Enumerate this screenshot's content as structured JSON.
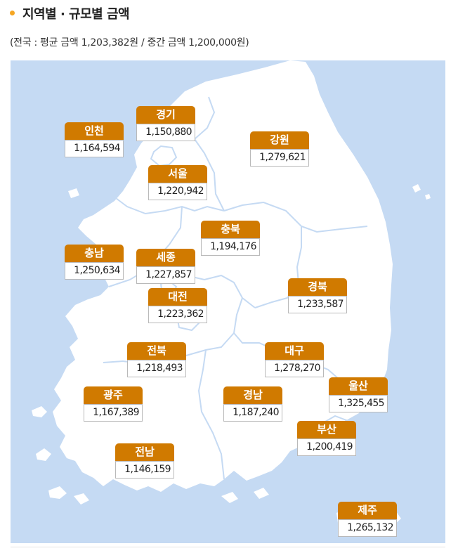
{
  "header": {
    "title": "지역별 · 규모별 금액",
    "subtitle": "(전국 : 평균 금액 1,203,382원 / 중간 금액 1,200,000원)"
  },
  "colors": {
    "accent": "#d07a00",
    "sea": "#c5daf3",
    "land": "#ffffff",
    "bullet": "#f5a623"
  },
  "regions": [
    {
      "name": "인천",
      "value": "1,164,594"
    },
    {
      "name": "경기",
      "value": "1,150,880"
    },
    {
      "name": "강원",
      "value": "1,279,621"
    },
    {
      "name": "서울",
      "value": "1,220,942"
    },
    {
      "name": "충북",
      "value": "1,194,176"
    },
    {
      "name": "충남",
      "value": "1,250,634"
    },
    {
      "name": "세종",
      "value": "1,227,857"
    },
    {
      "name": "경북",
      "value": "1,233,587"
    },
    {
      "name": "대전",
      "value": "1,223,362"
    },
    {
      "name": "전북",
      "value": "1,218,493"
    },
    {
      "name": "대구",
      "value": "1,278,270"
    },
    {
      "name": "광주",
      "value": "1,167,389"
    },
    {
      "name": "경남",
      "value": "1,187,240"
    },
    {
      "name": "울산",
      "value": "1,325,455"
    },
    {
      "name": "부산",
      "value": "1,200,419"
    },
    {
      "name": "전남",
      "value": "1,146,159"
    },
    {
      "name": "제주",
      "value": "1,265,132"
    }
  ]
}
